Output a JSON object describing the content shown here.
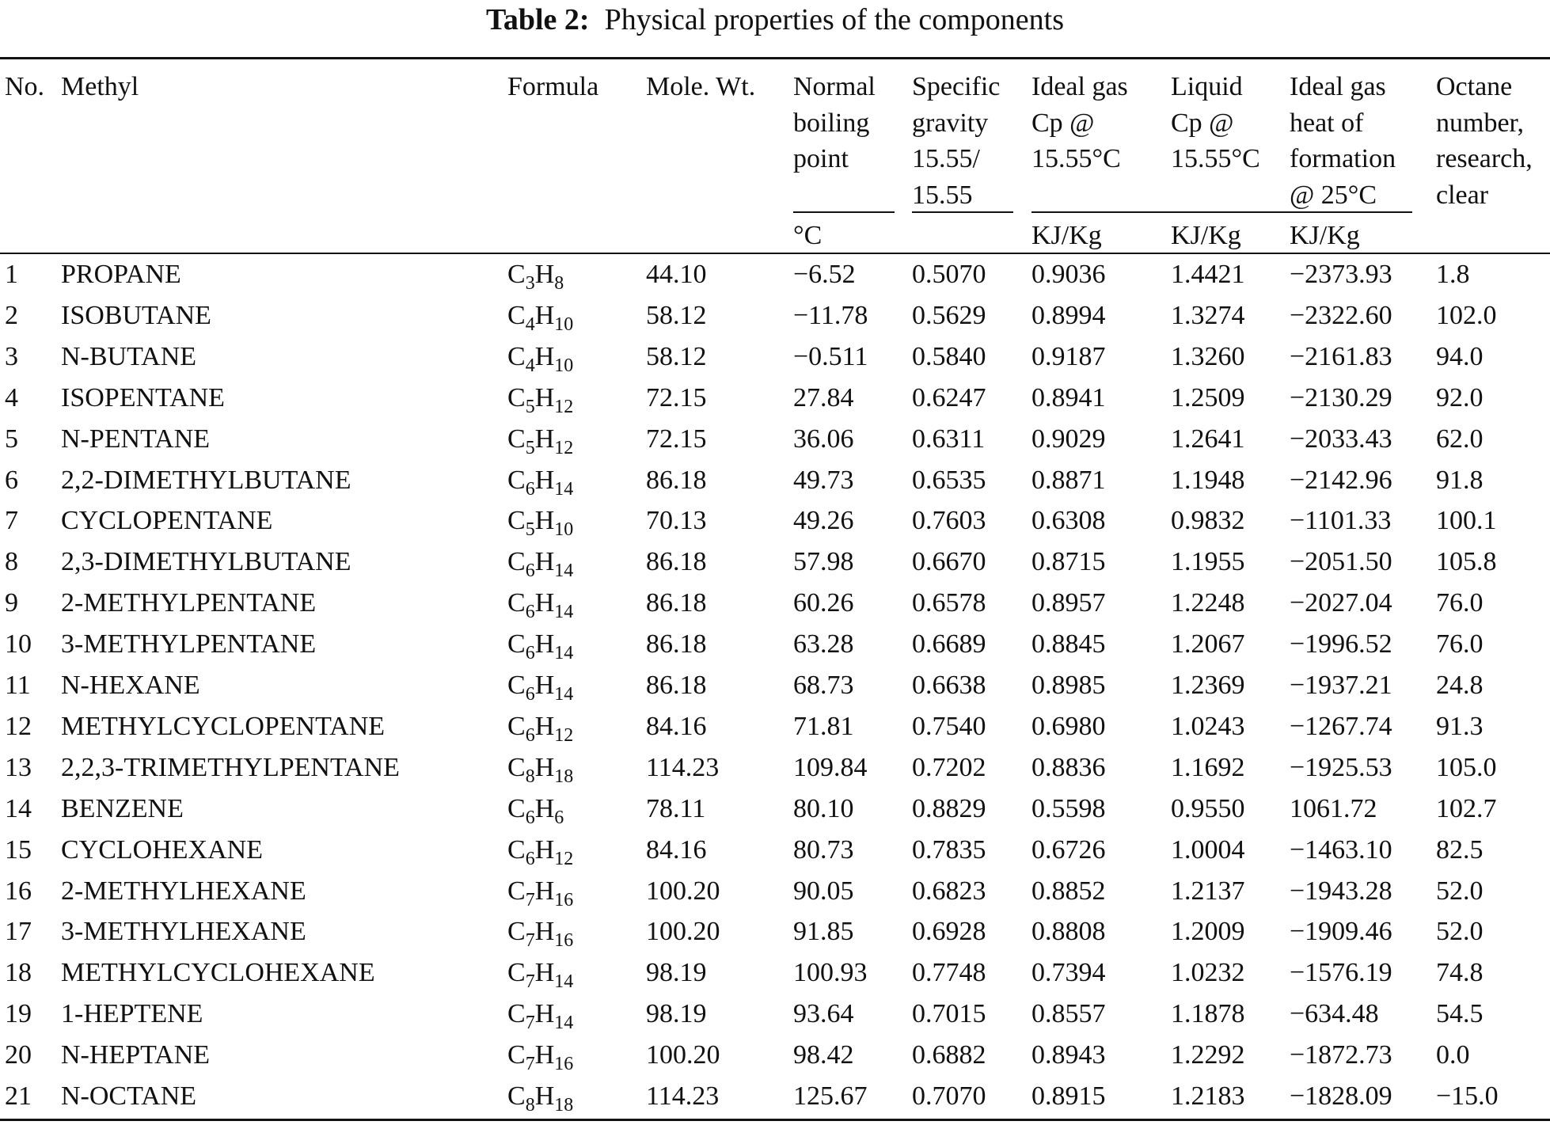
{
  "header": {
    "title_label": "Table 2:",
    "title": "Physical properties of the components"
  },
  "table": {
    "columns": [
      [
        "No."
      ],
      [
        "Methyl"
      ],
      [
        "Formula"
      ],
      [
        "Mole. Wt."
      ],
      [
        "Normal",
        "boiling",
        "point"
      ],
      [
        "Specific",
        "gravity",
        "15.55/",
        "15.55"
      ],
      [
        "Ideal gas",
        "Cp @",
        "15.55°C"
      ],
      [
        "Liquid",
        "Cp @",
        "15.55°C"
      ],
      [
        "Ideal gas",
        "heat of",
        "formation",
        "@ 25°C"
      ],
      [
        "Octane",
        "number,",
        "research,",
        "clear"
      ]
    ],
    "units": [
      "°C",
      "KJ/Kg",
      "KJ/Kg",
      "KJ/Kg"
    ],
    "rows": [
      [
        "1",
        "PROPANE",
        [
          "C",
          "3",
          "H",
          "8"
        ],
        "44.10",
        "−6.52",
        "0.5070",
        "0.9036",
        "1.4421",
        "−2373.93",
        "1.8"
      ],
      [
        "2",
        "ISOBUTANE",
        [
          "C",
          "4",
          "H",
          "10"
        ],
        "58.12",
        "−11.78",
        "0.5629",
        "0.8994",
        "1.3274",
        "−2322.60",
        "102.0"
      ],
      [
        "3",
        "N-BUTANE",
        [
          "C",
          "4",
          "H",
          "10"
        ],
        "58.12",
        "−0.511",
        "0.5840",
        "0.9187",
        "1.3260",
        "−2161.83",
        "94.0"
      ],
      [
        "4",
        "ISOPENTANE",
        [
          "C",
          "5",
          "H",
          "12"
        ],
        "72.15",
        "27.84",
        "0.6247",
        "0.8941",
        "1.2509",
        "−2130.29",
        "92.0"
      ],
      [
        "5",
        "N-PENTANE",
        [
          "C",
          "5",
          "H",
          "12"
        ],
        "72.15",
        "36.06",
        "0.6311",
        "0.9029",
        "1.2641",
        "−2033.43",
        "62.0"
      ],
      [
        "6",
        "2,2-DIMETHYLBUTANE",
        [
          "C",
          "6",
          "H",
          "14"
        ],
        "86.18",
        "49.73",
        "0.6535",
        "0.8871",
        "1.1948",
        "−2142.96",
        "91.8"
      ],
      [
        "7",
        "CYCLOPENTANE",
        [
          "C",
          "5",
          "H",
          "10"
        ],
        "70.13",
        "49.26",
        "0.7603",
        "0.6308",
        "0.9832",
        "−1101.33",
        "100.1"
      ],
      [
        "8",
        "2,3-DIMETHYLBUTANE",
        [
          "C",
          "6",
          "H",
          "14"
        ],
        "86.18",
        "57.98",
        "0.6670",
        "0.8715",
        "1.1955",
        "−2051.50",
        "105.8"
      ],
      [
        "9",
        "2-METHYLPENTANE",
        [
          "C",
          "6",
          "H",
          "14"
        ],
        "86.18",
        "60.26",
        "0.6578",
        "0.8957",
        "1.2248",
        "−2027.04",
        "76.0"
      ],
      [
        "10",
        "3-METHYLPENTANE",
        [
          "C",
          "6",
          "H",
          "14"
        ],
        "86.18",
        "63.28",
        "0.6689",
        "0.8845",
        "1.2067",
        "−1996.52",
        "76.0"
      ],
      [
        "11",
        "N-HEXANE",
        [
          "C",
          "6",
          "H",
          "14"
        ],
        "86.18",
        "68.73",
        "0.6638",
        "0.8985",
        "1.2369",
        "−1937.21",
        "24.8"
      ],
      [
        "12",
        "METHYLCYCLOPENTANE",
        [
          "C",
          "6",
          "H",
          "12"
        ],
        "84.16",
        "71.81",
        "0.7540",
        "0.6980",
        "1.0243",
        "−1267.74",
        "91.3"
      ],
      [
        "13",
        "2,2,3-TRIMETHYLPENTANE",
        [
          "C",
          "8",
          "H",
          "18"
        ],
        "114.23",
        "109.84",
        "0.7202",
        "0.8836",
        "1.1692",
        "−1925.53",
        "105.0"
      ],
      [
        "14",
        "BENZENE",
        [
          "C",
          "6",
          "H",
          "6"
        ],
        "78.11",
        "80.10",
        "0.8829",
        "0.5598",
        "0.9550",
        "1061.72",
        "102.7"
      ],
      [
        "15",
        "CYCLOHEXANE",
        [
          "C",
          "6",
          "H",
          "12"
        ],
        "84.16",
        "80.73",
        "0.7835",
        "0.6726",
        "1.0004",
        "−1463.10",
        "82.5"
      ],
      [
        "16",
        "2-METHYLHEXANE",
        [
          "C",
          "7",
          "H",
          "16"
        ],
        "100.20",
        "90.05",
        "0.6823",
        "0.8852",
        "1.2137",
        "−1943.28",
        "52.0"
      ],
      [
        "17",
        "3-METHYLHEXANE",
        [
          "C",
          "7",
          "H",
          "16"
        ],
        "100.20",
        "91.85",
        "0.6928",
        "0.8808",
        "1.2009",
        "−1909.46",
        "52.0"
      ],
      [
        "18",
        "METHYLCYCLOHEXANE",
        [
          "C",
          "7",
          "H",
          "14"
        ],
        "98.19",
        "100.93",
        "0.7748",
        "0.7394",
        "1.0232",
        "−1576.19",
        "74.8"
      ],
      [
        "19",
        "1-HEPTENE",
        [
          "C",
          "7",
          "H",
          "14"
        ],
        "98.19",
        "93.64",
        "0.7015",
        "0.8557",
        "1.1878",
        "−634.48",
        "54.5"
      ],
      [
        "20",
        "N-HEPTANE",
        [
          "C",
          "7",
          "H",
          "16"
        ],
        "100.20",
        "98.42",
        "0.6882",
        "0.8943",
        "1.2292",
        "−1872.73",
        "0.0"
      ],
      [
        "21",
        "N-OCTANE",
        [
          "C",
          "8",
          "H",
          "18"
        ],
        "114.23",
        "125.67",
        "0.7070",
        "0.8915",
        "1.2183",
        "−1828.09",
        "−15.0"
      ]
    ]
  }
}
